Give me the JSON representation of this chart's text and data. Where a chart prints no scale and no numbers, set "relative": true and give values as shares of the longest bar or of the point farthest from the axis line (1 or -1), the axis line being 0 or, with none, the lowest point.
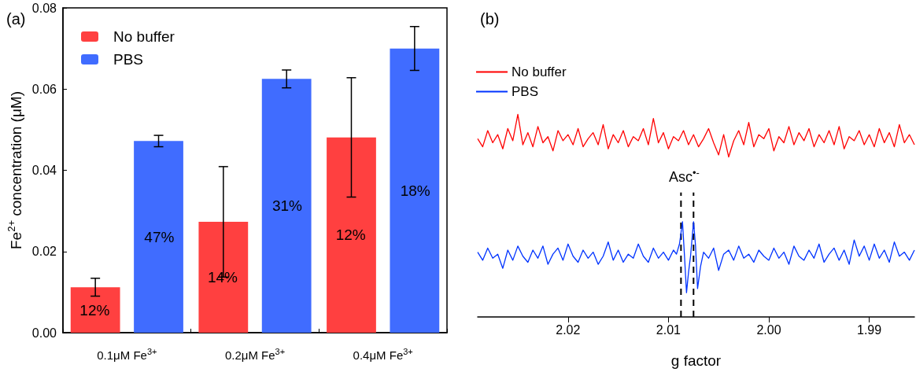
{
  "chart_data": [
    {
      "type": "bar",
      "ylabel": "Fe$^{2+}$ concentration (μM)",
      "categories": [
        "0.1μM Fe$^{3+}$",
        "0.2μM Fe$^{3+}$",
        "0.4μM Fe$^{3+}$"
      ],
      "series": [
        {
          "name": "No buffer",
          "color": "#ff4040",
          "values": [
            0.0112,
            0.0273,
            0.0481
          ],
          "errors": [
            0.0022,
            0.0136,
            0.0147
          ]
        },
        {
          "name": "PBS",
          "color": "#406cff",
          "values": [
            0.0472,
            0.0625,
            0.07
          ],
          "errors": [
            0.0014,
            0.0022,
            0.0054
          ]
        }
      ],
      "ylim": [
        0,
        0.08
      ],
      "yticks": [
        {
          "value": 0,
          "label": "0.00"
        },
        0.02,
        0.04,
        0.06,
        0.08
      ],
      "grid": false,
      "legend": "top left",
      "annotations": [
        "(a)",
        "12%",
        "47%",
        "14%",
        "31%",
        "12%",
        "18%"
      ]
    },
    {
      "type": "line",
      "xlabel": "g factor",
      "relative": true,
      "tick_labels": "x",
      "legend": "top left",
      "marker": "none",
      "grid": false,
      "xlim": [
        2.029,
        1.9855
      ],
      "xticks": [
        2.02,
        2.01,
        {
          "value": 2.0,
          "label": "2.00"
        },
        1.99
      ],
      "series": [
        {
          "name": "No buffer",
          "color": "#ff0000",
          "x": [
            2.029,
            2.0285,
            2.028,
            2.0275,
            2.027,
            2.0265,
            2.026,
            2.0255,
            2.025,
            2.0245,
            2.024,
            2.0235,
            2.023,
            2.0225,
            2.022,
            2.0215,
            2.021,
            2.0205,
            2.02,
            2.0195,
            2.019,
            2.0185,
            2.018,
            2.0175,
            2.017,
            2.0165,
            2.016,
            2.0155,
            2.015,
            2.0145,
            2.014,
            2.0135,
            2.013,
            2.0125,
            2.012,
            2.0115,
            2.011,
            2.0105,
            2.01,
            2.0095,
            2.009,
            2.0085,
            2.008,
            2.0075,
            2.007,
            2.0065,
            2.006,
            2.0055,
            2.005,
            2.0045,
            2.004,
            2.0035,
            2.003,
            2.0025,
            2.002,
            2.0015,
            2.001,
            2.0005,
            2.0,
            1.9995,
            1.999,
            1.9985,
            1.998,
            1.9975,
            1.997,
            1.9965,
            1.996,
            1.9955,
            1.995,
            1.9945,
            1.994,
            1.9935,
            1.993,
            1.9925,
            1.992,
            1.9915,
            1.991,
            1.9905,
            1.99,
            1.9895,
            1.989,
            1.9885,
            1.988,
            1.9875,
            1.987,
            1.9865,
            1.986,
            1.9855
          ],
          "values": [
            0.88,
            0.84,
            0.92,
            0.86,
            0.9,
            0.83,
            0.93,
            0.87,
            1.0,
            0.85,
            0.91,
            0.84,
            0.94,
            0.86,
            0.89,
            0.82,
            0.92,
            0.87,
            0.9,
            0.85,
            0.93,
            0.84,
            0.88,
            0.91,
            0.85,
            0.95,
            0.83,
            0.9,
            0.86,
            0.92,
            0.84,
            0.89,
            0.87,
            0.93,
            0.85,
            0.98,
            0.86,
            0.91,
            0.83,
            0.89,
            0.87,
            0.92,
            0.85,
            0.9,
            0.84,
            0.88,
            0.93,
            0.86,
            0.8,
            0.9,
            0.79,
            0.87,
            0.92,
            0.85,
            0.96,
            0.84,
            0.9,
            0.88,
            0.93,
            0.82,
            0.89,
            0.86,
            0.94,
            0.85,
            0.91,
            0.87,
            0.93,
            0.84,
            0.9,
            0.86,
            0.92,
            0.85,
            0.94,
            0.83,
            0.89,
            0.87,
            0.92,
            0.85,
            0.9,
            0.84,
            0.93,
            0.86,
            0.91,
            0.84,
            0.95,
            0.86,
            0.9,
            0.85
          ]
        },
        {
          "name": "PBS",
          "color": "#0033ff",
          "x": [
            2.029,
            2.0285,
            2.028,
            2.0275,
            2.027,
            2.0265,
            2.026,
            2.0255,
            2.025,
            2.0245,
            2.024,
            2.0235,
            2.023,
            2.0225,
            2.022,
            2.0215,
            2.021,
            2.0205,
            2.02,
            2.0195,
            2.019,
            2.0185,
            2.018,
            2.0175,
            2.017,
            2.0165,
            2.016,
            2.0155,
            2.015,
            2.0145,
            2.014,
            2.0135,
            2.013,
            2.0125,
            2.012,
            2.0115,
            2.011,
            2.0105,
            2.01,
            2.0095,
            2.0092,
            2.0089,
            2.0086,
            2.0084,
            2.0082,
            2.008,
            2.0078,
            2.0075,
            2.0073,
            2.0071,
            2.0068,
            2.0065,
            2.006,
            2.0055,
            2.005,
            2.0045,
            2.004,
            2.0035,
            2.003,
            2.0025,
            2.002,
            2.0015,
            2.001,
            2.0005,
            2.0,
            1.9995,
            1.999,
            1.9985,
            1.998,
            1.9975,
            1.997,
            1.9965,
            1.996,
            1.9955,
            1.995,
            1.9945,
            1.994,
            1.9935,
            1.993,
            1.9925,
            1.992,
            1.9915,
            1.991,
            1.9905,
            1.99,
            1.9895,
            1.989,
            1.9885,
            1.988,
            1.9875,
            1.987,
            1.9865,
            1.986,
            1.9855
          ],
          "values": [
            0.32,
            0.28,
            0.34,
            0.29,
            0.31,
            0.24,
            0.33,
            0.28,
            0.35,
            0.3,
            0.27,
            0.33,
            0.29,
            0.35,
            0.26,
            0.31,
            0.34,
            0.28,
            0.36,
            0.3,
            0.27,
            0.33,
            0.29,
            0.32,
            0.26,
            0.3,
            0.37,
            0.28,
            0.33,
            0.27,
            0.31,
            0.29,
            0.36,
            0.3,
            0.27,
            0.34,
            0.29,
            0.32,
            0.28,
            0.33,
            0.31,
            0.36,
            0.47,
            0.3,
            0.12,
            0.22,
            0.3,
            0.47,
            0.35,
            0.14,
            0.25,
            0.32,
            0.29,
            0.34,
            0.23,
            0.31,
            0.33,
            0.28,
            0.35,
            0.29,
            0.31,
            0.27,
            0.33,
            0.3,
            0.28,
            0.34,
            0.29,
            0.32,
            0.26,
            0.35,
            0.3,
            0.28,
            0.33,
            0.29,
            0.36,
            0.27,
            0.31,
            0.34,
            0.28,
            0.33,
            0.26,
            0.38,
            0.3,
            0.35,
            0.28,
            0.36,
            0.29,
            0.33,
            0.27,
            0.37,
            0.3,
            0.32,
            0.28,
            0.33
          ]
        }
      ],
      "ref_lines": [
        {
          "axis": "x",
          "value": 2.00875,
          "color": "#000000",
          "line_style": "dashed"
        },
        {
          "axis": "x",
          "value": 2.0075,
          "color": "#000000",
          "line_style": "dashed"
        }
      ],
      "annotations": [
        "(b)",
        "Asc$^{•-}$"
      ]
    }
  ]
}
